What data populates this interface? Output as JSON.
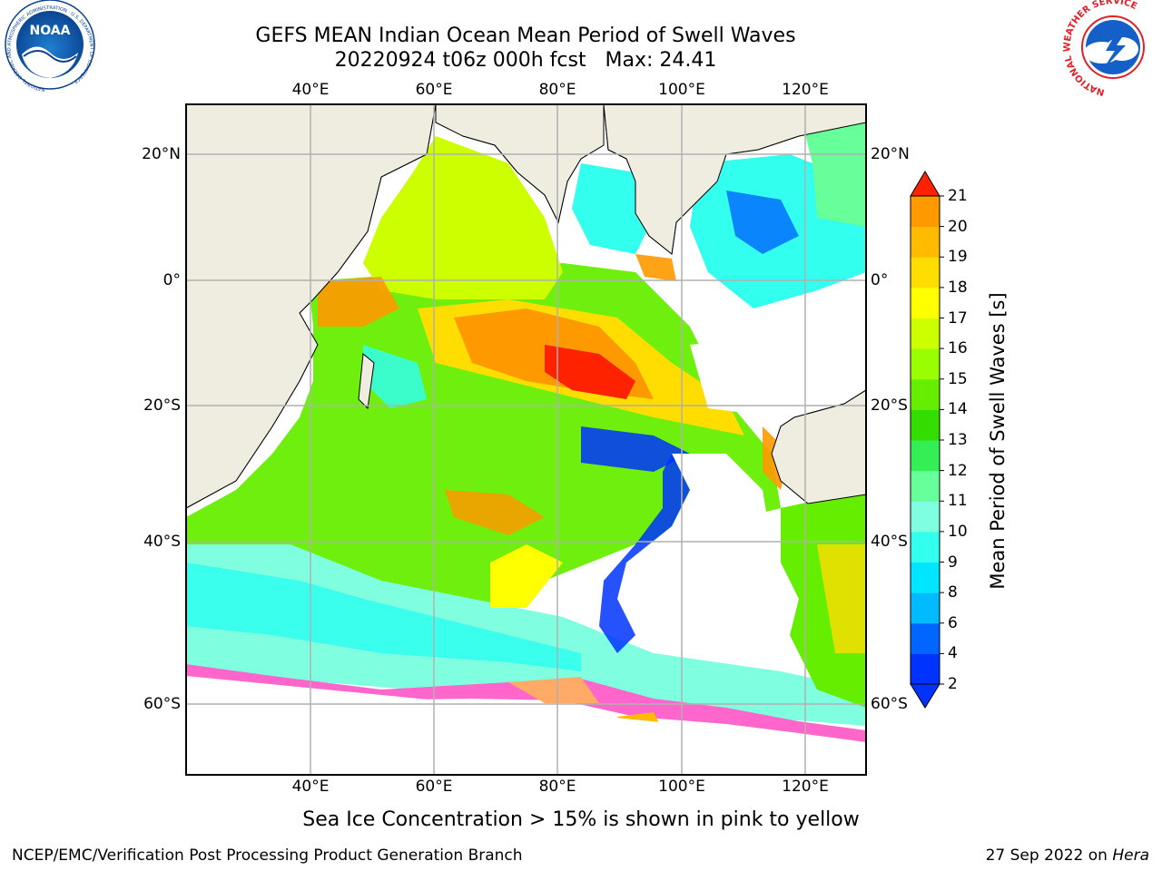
{
  "header": {
    "title": "GEFS MEAN Indian Ocean Mean Period of Swell Waves",
    "subtitle": "20220924 t06z 000h fcst   Max: 24.41"
  },
  "map": {
    "lon_ticks": [
      "40°E",
      "60°E",
      "80°E",
      "100°E",
      "120°E"
    ],
    "lat_ticks": [
      "20°N",
      "0°",
      "20°S",
      "40°S",
      "60°S"
    ],
    "land_color": "#EFEDE0",
    "grid_color": "#B0B0B0"
  },
  "colorbar": {
    "title": "Mean Period of Swell Waves [s]",
    "ticks": [
      "2",
      "4",
      "6",
      "8",
      "9",
      "10",
      "11",
      "12",
      "13",
      "14",
      "15",
      "16",
      "17",
      "18",
      "19",
      "20",
      "21"
    ],
    "colors": [
      "#0033FF",
      "#0066FF",
      "#00BBFF",
      "#00E6FF",
      "#33FFEE",
      "#80FFE0",
      "#66FF99",
      "#33EE55",
      "#33DD00",
      "#66EE00",
      "#99FF00",
      "#CCFF00",
      "#FFFF00",
      "#FFDD00",
      "#FFBB00",
      "#FF9900",
      "#FF6600",
      "#FF2200"
    ]
  },
  "caption": "Sea Ice Concentration > 15% is shown in pink to yellow",
  "footer": {
    "left": "NCEP/EMC/Verification Post Processing Product Generation Branch",
    "date": "27 Sep 2022 on ",
    "machine": "Hera"
  },
  "logos": {
    "noaa_text": "NOAA",
    "noaa_ring": "NATIONAL OCEANIC AND ATMOSPHERIC ADMINISTRATION · U.S. DEPARTMENT OF COMMERCE ·",
    "nws_ring": "NATIONAL WEATHER SERVICE"
  }
}
